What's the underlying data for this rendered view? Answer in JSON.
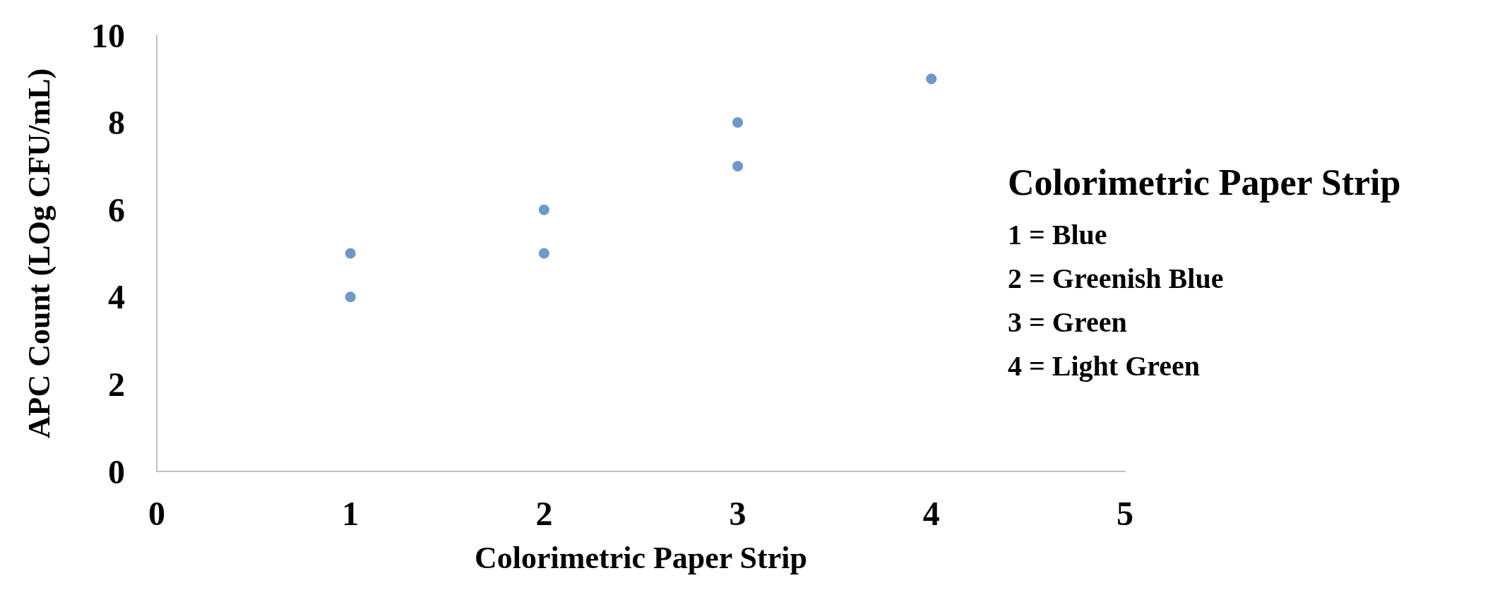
{
  "chart_data": {
    "type": "scatter",
    "xlabel": "Colorimetric Paper Strip",
    "ylabel": "APC Count (LOg CFU/mL)",
    "x": [
      1,
      1,
      2,
      2,
      3,
      3,
      4
    ],
    "series": [
      {
        "color": "#4a7ebb",
        "values": [
          5,
          4,
          6,
          5,
          8,
          7,
          9
        ]
      }
    ],
    "xlim": [
      0,
      5
    ],
    "xticks": [
      0,
      1,
      2,
      3,
      4,
      5
    ],
    "ylim": [
      0,
      10
    ],
    "yticks": [
      0,
      2,
      4,
      6,
      8,
      10
    ],
    "grid": false,
    "marker": "circle",
    "annotations": [
      "Colorimetric Paper Strip",
      "1 = Blue",
      "2 = Greenish Blue",
      "3 = Green",
      "4 = Light Green"
    ]
  }
}
